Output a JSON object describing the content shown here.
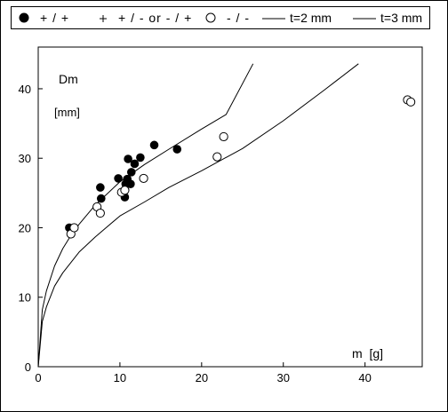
{
  "chart_data": {
    "type": "scatter",
    "title": "",
    "xlabel": "m  [g]",
    "ylabel": "Dm",
    "ylabel_unit": "[mm]",
    "xlim": [
      0,
      47
    ],
    "ylim": [
      0,
      46
    ],
    "xticks": [
      "0",
      "10",
      "20",
      "30",
      "40"
    ],
    "yticks": [
      "0",
      "10",
      "20",
      "30",
      "40"
    ],
    "legend_position": "top",
    "grid": false,
    "legend": [
      {
        "key": "filled",
        "symbol": "filled-circle",
        "label": "+ / +"
      },
      {
        "key": "plus",
        "symbol": "plus",
        "label": "+ / - or - / +"
      },
      {
        "key": "open",
        "symbol": "open-circle",
        "label": "- / -"
      },
      {
        "key": "t2",
        "symbol": "line",
        "label": "t=2 mm"
      },
      {
        "key": "t3",
        "symbol": "line",
        "label": "t=3 mm"
      }
    ],
    "series": [
      {
        "name": "+ / +",
        "marker": "filled-circle",
        "points": [
          [
            3.8,
            20.0
          ],
          [
            7.6,
            25.8
          ],
          [
            7.7,
            24.2
          ],
          [
            9.8,
            27.1
          ],
          [
            10.6,
            24.4
          ],
          [
            10.7,
            26.3
          ],
          [
            10.9,
            27.0
          ],
          [
            11.0,
            29.9
          ],
          [
            11.3,
            26.3
          ],
          [
            11.4,
            28.0
          ],
          [
            11.8,
            29.2
          ],
          [
            12.5,
            30.1
          ],
          [
            14.2,
            31.9
          ],
          [
            17.0,
            31.3
          ]
        ]
      },
      {
        "name": "+ / - or - / +",
        "marker": "plus",
        "points": []
      },
      {
        "name": "- / -",
        "marker": "open-circle",
        "points": [
          [
            4.0,
            19.1
          ],
          [
            4.4,
            20.0
          ],
          [
            7.2,
            23.0
          ],
          [
            7.6,
            22.1
          ],
          [
            10.2,
            25.1
          ],
          [
            10.6,
            25.4
          ],
          [
            12.9,
            27.1
          ],
          [
            21.9,
            30.2
          ],
          [
            22.7,
            33.1
          ],
          [
            45.2,
            38.4
          ],
          [
            45.6,
            38.1
          ]
        ]
      },
      {
        "name": "t=2 mm",
        "type": "line",
        "points": [
          [
            0,
            0
          ],
          [
            0.5,
            8.2
          ],
          [
            1,
            10.9
          ],
          [
            2,
            14.5
          ],
          [
            3,
            17.0
          ],
          [
            4,
            18.9
          ],
          [
            5,
            20.5
          ],
          [
            7,
            23.3
          ],
          [
            10,
            26.6
          ],
          [
            13,
            29.1
          ],
          [
            16,
            31.3
          ],
          [
            20,
            34.2
          ],
          [
            23,
            36.3
          ],
          [
            26.3,
            43.6
          ]
        ]
      },
      {
        "name": "t=3 mm",
        "type": "line",
        "points": [
          [
            0,
            0
          ],
          [
            0.5,
            6.5
          ],
          [
            1,
            8.6
          ],
          [
            2,
            11.6
          ],
          [
            3,
            13.5
          ],
          [
            5,
            16.5
          ],
          [
            7,
            18.7
          ],
          [
            10,
            21.7
          ],
          [
            13,
            23.7
          ],
          [
            16,
            25.8
          ],
          [
            20,
            28.2
          ],
          [
            25,
            31.4
          ],
          [
            30,
            35.4
          ],
          [
            35,
            39.8
          ],
          [
            39.2,
            43.6
          ]
        ]
      }
    ]
  }
}
